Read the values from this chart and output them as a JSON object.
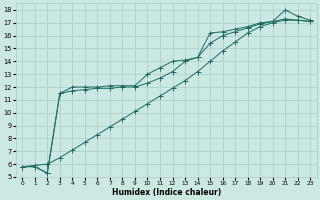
{
  "xlabel": "Humidex (Indice chaleur)",
  "bg_color": "#cce8e2",
  "grid_color": "#aacec8",
  "line_color": "#1a6b60",
  "xlim": [
    -0.5,
    23.5
  ],
  "ylim": [
    5,
    18.5
  ],
  "xtick_labels": [
    "0",
    "1",
    "2",
    "3",
    "4",
    "5",
    "6",
    "7",
    "8",
    "9",
    "10",
    "11",
    "12",
    "13",
    "14",
    "15",
    "16",
    "17",
    "18",
    "19",
    "20",
    "21",
    "22",
    "23"
  ],
  "xtick_vals": [
    0,
    1,
    2,
    3,
    4,
    5,
    6,
    7,
    8,
    9,
    10,
    11,
    12,
    13,
    14,
    15,
    16,
    17,
    18,
    19,
    20,
    21,
    22,
    23
  ],
  "ytick_vals": [
    5,
    6,
    7,
    8,
    9,
    10,
    11,
    12,
    13,
    14,
    15,
    16,
    17,
    18
  ],
  "line1_x": [
    0,
    1,
    2,
    3,
    4,
    5,
    6,
    7,
    8,
    9,
    10,
    11,
    12,
    13,
    14,
    15,
    16,
    17,
    18,
    19,
    20,
    21,
    22,
    23
  ],
  "line1_y": [
    5.8,
    5.8,
    5.3,
    11.5,
    12.0,
    12.0,
    12.0,
    12.1,
    12.1,
    12.1,
    13.0,
    13.5,
    14.0,
    14.1,
    14.3,
    16.2,
    16.3,
    16.5,
    16.7,
    17.0,
    17.1,
    18.0,
    17.5,
    17.2
  ],
  "line2_x": [
    0,
    1,
    2,
    3,
    4,
    5,
    6,
    7,
    8,
    9,
    10,
    11,
    12,
    13,
    14,
    15,
    16,
    17,
    18,
    19,
    20,
    21,
    22,
    23
  ],
  "line2_y": [
    5.8,
    5.9,
    6.0,
    6.5,
    7.1,
    7.7,
    8.3,
    8.9,
    9.5,
    10.1,
    10.7,
    11.3,
    11.9,
    12.5,
    13.2,
    14.0,
    14.8,
    15.5,
    16.2,
    16.7,
    17.0,
    17.2,
    17.2,
    17.1
  ],
  "line3_x": [
    0,
    1,
    2,
    3,
    4,
    5,
    6,
    7,
    8,
    9,
    10,
    11,
    12,
    13,
    14,
    15,
    16,
    17,
    18,
    19,
    20,
    21,
    22,
    23
  ],
  "line3_y": [
    5.8,
    5.8,
    5.3,
    11.5,
    11.7,
    11.8,
    11.9,
    11.9,
    12.0,
    12.0,
    12.3,
    12.7,
    13.2,
    14.0,
    14.3,
    15.4,
    16.0,
    16.3,
    16.6,
    16.9,
    17.1,
    17.3,
    17.2,
    17.1
  ]
}
